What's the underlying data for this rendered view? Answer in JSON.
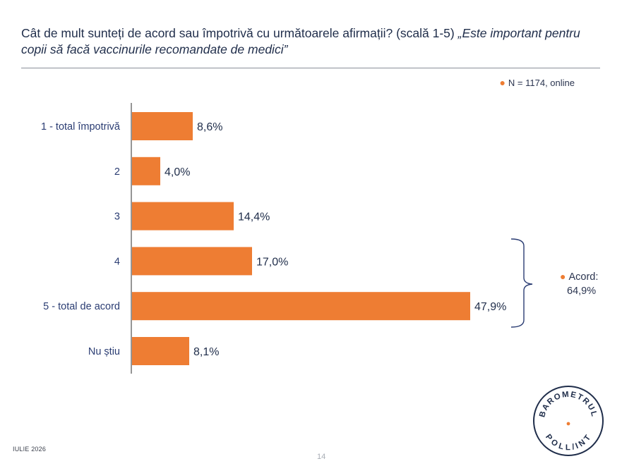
{
  "header": {
    "question": "Cât de mult sunteți de acord sau împotrivă cu următoarele afirmații? (scală 1-5)",
    "statement": "„Este important pentru copii să facă vaccinurile recomandate de medici”"
  },
  "note": {
    "text": "N = 1174, online"
  },
  "summary": {
    "label": "Acord:",
    "value": "64,9%"
  },
  "footer": {
    "date": "IULIE 2026",
    "page": "14"
  },
  "brand": {
    "top": "BAROMETRUL",
    "bottom": "POLL/INT"
  },
  "colors": {
    "bar": "#ee7d33",
    "text": "#1f2d4a",
    "axis": "#2b2b2b"
  },
  "chart_data": {
    "type": "bar",
    "orientation": "horizontal",
    "categories": [
      "1 - total împotrivă",
      "2",
      "3",
      "4",
      "5 - total de acord",
      "Nu știu"
    ],
    "values": [
      8.6,
      4.0,
      14.4,
      17.0,
      47.9,
      8.1
    ],
    "value_labels": [
      "8,6%",
      "4,0%",
      "14,4%",
      "17,0%",
      "47,9%",
      "8,1%"
    ],
    "xlim": [
      0,
      100
    ],
    "grid": false,
    "bracket_categories": [
      "4",
      "5 - total de acord"
    ]
  }
}
